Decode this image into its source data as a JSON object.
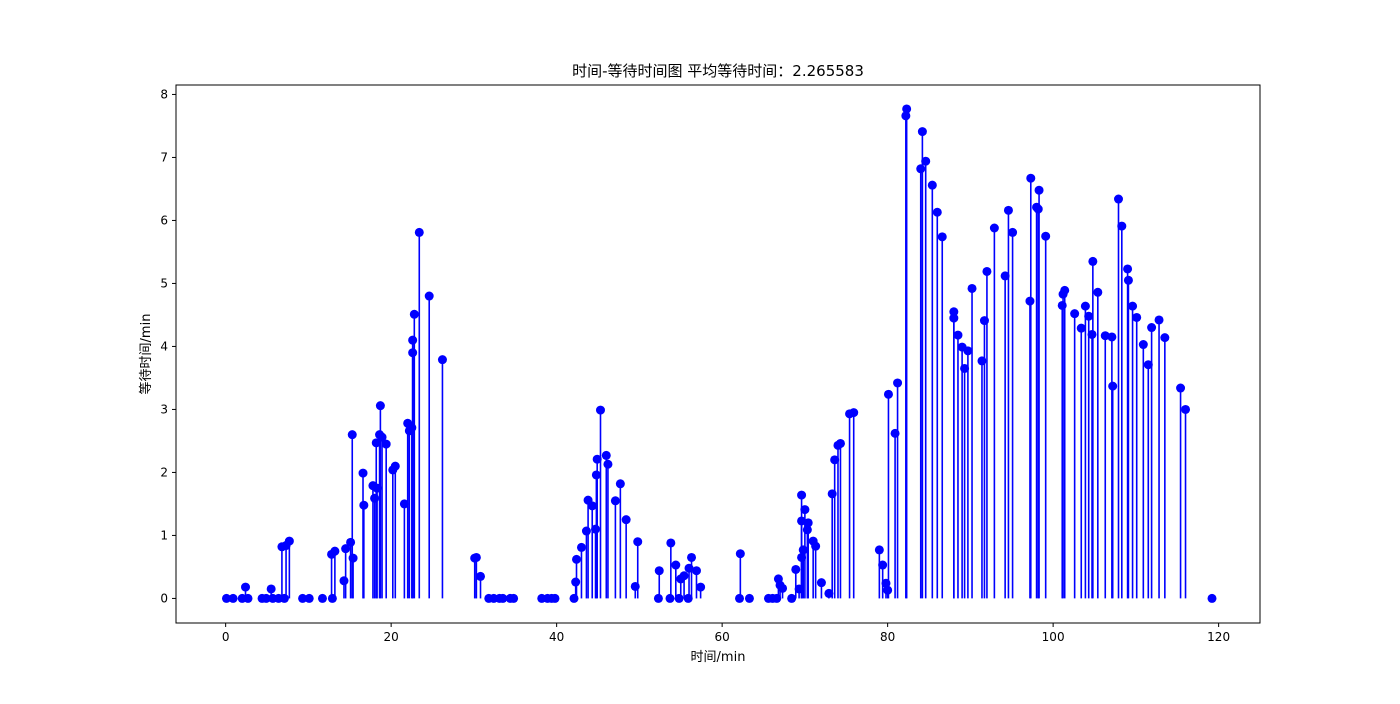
{
  "chart_data": {
    "type": "stem",
    "title": "时间-等待时间图 平均等待时间：2.265583",
    "xlabel": "时间/min",
    "ylabel": "等待时间/min",
    "xlim": [
      -6,
      125
    ],
    "ylim": [
      -0.39,
      8.15
    ],
    "xticks": [
      0,
      20,
      40,
      60,
      80,
      100,
      120
    ],
    "yticks": [
      0,
      1,
      2,
      3,
      4,
      5,
      6,
      7,
      8
    ],
    "color": "#0000ff",
    "grid": false,
    "legend": "none",
    "points": [
      [
        0.1,
        0
      ],
      [
        0.9,
        0
      ],
      [
        2.0,
        0
      ],
      [
        2.4,
        0.18
      ],
      [
        2.7,
        0
      ],
      [
        4.4,
        0
      ],
      [
        4.9,
        0
      ],
      [
        5.5,
        0.15
      ],
      [
        5.7,
        0
      ],
      [
        6.4,
        0
      ],
      [
        6.8,
        0.82
      ],
      [
        7.1,
        0
      ],
      [
        7.3,
        0.84
      ],
      [
        7.7,
        0.91
      ],
      [
        9.3,
        0
      ],
      [
        10.1,
        0
      ],
      [
        11.7,
        0
      ],
      [
        12.8,
        0.7
      ],
      [
        12.9,
        0
      ],
      [
        13.2,
        0.75
      ],
      [
        14.3,
        0.28
      ],
      [
        14.5,
        0.79
      ],
      [
        15.1,
        0.89
      ],
      [
        15.3,
        2.6
      ],
      [
        15.4,
        0.64
      ],
      [
        16.6,
        1.99
      ],
      [
        16.7,
        1.48
      ],
      [
        17.8,
        1.79
      ],
      [
        18.0,
        1.59
      ],
      [
        18.2,
        2.47
      ],
      [
        18.3,
        1.75
      ],
      [
        18.6,
        2.6
      ],
      [
        18.7,
        3.06
      ],
      [
        18.9,
        2.56
      ],
      [
        19.4,
        2.45
      ],
      [
        20.2,
        2.04
      ],
      [
        20.5,
        2.1
      ],
      [
        21.6,
        1.5
      ],
      [
        22.0,
        2.78
      ],
      [
        22.2,
        2.66
      ],
      [
        22.5,
        2.71
      ],
      [
        22.6,
        3.9
      ],
      [
        22.6,
        4.1
      ],
      [
        22.8,
        4.51
      ],
      [
        23.4,
        5.81
      ],
      [
        24.6,
        4.8
      ],
      [
        26.2,
        3.79
      ],
      [
        30.1,
        0.64
      ],
      [
        30.3,
        0.65
      ],
      [
        30.8,
        0.35
      ],
      [
        31.8,
        0
      ],
      [
        32.4,
        0
      ],
      [
        33.1,
        0
      ],
      [
        33.5,
        0
      ],
      [
        34.4,
        0
      ],
      [
        34.8,
        0
      ],
      [
        38.2,
        0
      ],
      [
        38.9,
        0
      ],
      [
        39.4,
        0
      ],
      [
        39.8,
        0
      ],
      [
        42.1,
        0
      ],
      [
        42.3,
        0.26
      ],
      [
        42.4,
        0.62
      ],
      [
        43.0,
        0.81
      ],
      [
        43.6,
        1.07
      ],
      [
        43.8,
        1.56
      ],
      [
        44.3,
        1.47
      ],
      [
        44.7,
        1.1
      ],
      [
        44.8,
        1.96
      ],
      [
        44.9,
        2.21
      ],
      [
        45.3,
        2.99
      ],
      [
        46.0,
        2.27
      ],
      [
        46.2,
        2.13
      ],
      [
        47.1,
        1.55
      ],
      [
        47.7,
        1.82
      ],
      [
        48.4,
        1.25
      ],
      [
        49.5,
        0.19
      ],
      [
        49.8,
        0.9
      ],
      [
        52.3,
        0
      ],
      [
        52.4,
        0.44
      ],
      [
        53.7,
        0
      ],
      [
        53.8,
        0.88
      ],
      [
        54.4,
        0.53
      ],
      [
        54.8,
        0
      ],
      [
        55.0,
        0.31
      ],
      [
        55.4,
        0.36
      ],
      [
        55.9,
        0
      ],
      [
        56.0,
        0.48
      ],
      [
        56.3,
        0.65
      ],
      [
        56.9,
        0.44
      ],
      [
        57.4,
        0.18
      ],
      [
        62.1,
        0
      ],
      [
        62.2,
        0.71
      ],
      [
        63.3,
        0
      ],
      [
        65.6,
        0
      ],
      [
        66.1,
        0
      ],
      [
        66.6,
        0
      ],
      [
        66.8,
        0.31
      ],
      [
        67.0,
        0.21
      ],
      [
        67.3,
        0.16
      ],
      [
        68.4,
        0
      ],
      [
        68.9,
        0.46
      ],
      [
        69.3,
        0.15
      ],
      [
        69.6,
        0.65
      ],
      [
        69.6,
        1.23
      ],
      [
        69.6,
        1.64
      ],
      [
        69.8,
        0.77
      ],
      [
        70.0,
        1.41
      ],
      [
        70.3,
        1.09
      ],
      [
        70.4,
        1.2
      ],
      [
        71.0,
        0.91
      ],
      [
        71.3,
        0.83
      ],
      [
        72.0,
        0.25
      ],
      [
        72.9,
        0.08
      ],
      [
        73.3,
        1.66
      ],
      [
        73.6,
        2.2
      ],
      [
        74.0,
        2.43
      ],
      [
        74.3,
        2.46
      ],
      [
        75.4,
        2.93
      ],
      [
        75.9,
        2.95
      ],
      [
        79.0,
        0.77
      ],
      [
        79.4,
        0.53
      ],
      [
        79.8,
        0.24
      ],
      [
        80.0,
        0.13
      ],
      [
        80.1,
        3.24
      ],
      [
        80.9,
        2.62
      ],
      [
        81.2,
        3.42
      ],
      [
        82.2,
        7.66
      ],
      [
        82.3,
        7.77
      ],
      [
        84.0,
        6.82
      ],
      [
        84.2,
        7.41
      ],
      [
        84.6,
        6.94
      ],
      [
        85.4,
        6.56
      ],
      [
        86.0,
        6.13
      ],
      [
        86.6,
        5.74
      ],
      [
        88.0,
        4.55
      ],
      [
        88.0,
        4.45
      ],
      [
        88.5,
        4.18
      ],
      [
        89.0,
        3.99
      ],
      [
        89.3,
        3.65
      ],
      [
        89.7,
        3.93
      ],
      [
        90.2,
        4.92
      ],
      [
        91.4,
        3.77
      ],
      [
        91.7,
        4.41
      ],
      [
        92.0,
        5.19
      ],
      [
        92.9,
        5.88
      ],
      [
        94.2,
        5.12
      ],
      [
        94.6,
        6.16
      ],
      [
        95.1,
        5.81
      ],
      [
        97.2,
        4.72
      ],
      [
        97.3,
        6.67
      ],
      [
        98.0,
        6.21
      ],
      [
        98.2,
        6.18
      ],
      [
        98.3,
        6.48
      ],
      [
        99.1,
        5.75
      ],
      [
        101.1,
        4.65
      ],
      [
        101.2,
        4.83
      ],
      [
        101.4,
        4.89
      ],
      [
        102.6,
        4.52
      ],
      [
        103.4,
        4.29
      ],
      [
        103.9,
        4.64
      ],
      [
        104.3,
        4.48
      ],
      [
        104.7,
        4.19
      ],
      [
        104.8,
        5.35
      ],
      [
        105.4,
        4.86
      ],
      [
        106.3,
        4.17
      ],
      [
        107.1,
        4.15
      ],
      [
        107.2,
        3.37
      ],
      [
        107.9,
        6.34
      ],
      [
        108.3,
        5.91
      ],
      [
        109.0,
        5.23
      ],
      [
        109.1,
        5.05
      ],
      [
        109.6,
        4.64
      ],
      [
        110.1,
        4.46
      ],
      [
        110.9,
        4.03
      ],
      [
        111.5,
        3.71
      ],
      [
        111.9,
        4.3
      ],
      [
        112.8,
        4.42
      ],
      [
        113.5,
        4.14
      ],
      [
        115.4,
        3.34
      ],
      [
        116.0,
        3.0
      ],
      [
        119.2,
        0
      ]
    ]
  }
}
